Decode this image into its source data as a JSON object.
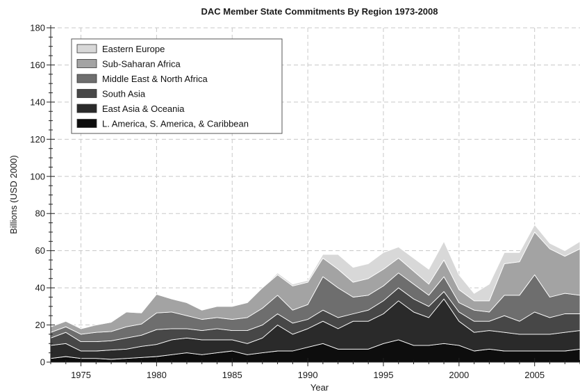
{
  "chart_data": {
    "type": "area",
    "stacked": true,
    "title": "DAC Member State Commitments By Region 1973-2008",
    "xlabel": "Year",
    "ylabel": "Billions (USD 2000)",
    "xlim": [
      1973,
      2008
    ],
    "ylim": [
      0,
      180
    ],
    "x_ticks": [
      1975,
      1980,
      1985,
      1990,
      1995,
      2000,
      2005
    ],
    "y_ticks": [
      0,
      20,
      40,
      60,
      80,
      100,
      120,
      140,
      160,
      180
    ],
    "grid": true,
    "legend_position": "top-left",
    "x": [
      1973,
      1974,
      1975,
      1976,
      1977,
      1978,
      1979,
      1980,
      1981,
      1982,
      1983,
      1984,
      1985,
      1986,
      1987,
      1988,
      1989,
      1990,
      1991,
      1992,
      1993,
      1994,
      1995,
      1996,
      1997,
      1998,
      1999,
      2000,
      2001,
      2002,
      2003,
      2004,
      2005,
      2006,
      2007,
      2008
    ],
    "series": [
      {
        "name": "L. America, S. America, & Caribbean",
        "color": "#0d0d0d",
        "values": [
          2,
          3,
          2,
          2,
          1.5,
          2,
          2.5,
          3,
          4,
          5,
          4,
          5,
          6,
          4,
          5,
          6,
          6,
          8,
          10,
          7,
          7,
          7,
          10,
          12,
          9,
          9,
          10,
          9,
          6,
          7,
          6,
          6,
          6,
          6,
          6,
          7
        ]
      },
      {
        "name": "East Asia & Oceania",
        "color": "#2a2a2a",
        "values": [
          7,
          7,
          4,
          4,
          5,
          5,
          6,
          6.5,
          8,
          8,
          8,
          7,
          6,
          6,
          8,
          14,
          9,
          10,
          12,
          11,
          15,
          15,
          16,
          21,
          18,
          15,
          24,
          13,
          10,
          10,
          10,
          9,
          9,
          9,
          10,
          10
        ]
      },
      {
        "name": "South Asia",
        "color": "#474747",
        "values": [
          4,
          6,
          5,
          5,
          5,
          6,
          6,
          8,
          6,
          5,
          5,
          6,
          5,
          7,
          7,
          6,
          6,
          5,
          6,
          6,
          4,
          6,
          7,
          7,
          7,
          6,
          4,
          5,
          6,
          5,
          9,
          7,
          12,
          9,
          10,
          9
        ]
      },
      {
        "name": "Middle East & North Africa",
        "color": "#6e6e6e",
        "values": [
          3,
          3,
          4,
          5,
          5,
          6,
          6,
          9,
          9,
          7,
          6,
          6,
          6,
          7,
          9,
          10,
          7,
          8,
          18,
          16,
          9,
          8,
          8,
          8,
          8,
          6,
          8,
          5,
          6,
          5,
          11,
          14,
          20,
          11,
          11,
          10
        ]
      },
      {
        "name": "Sub-Saharan Africa",
        "color": "#a3a3a3",
        "values": [
          3,
          3,
          3,
          4,
          5,
          8,
          6,
          10,
          7,
          7,
          5,
          6,
          7,
          8,
          11,
          11,
          13,
          12,
          10,
          10,
          8,
          9,
          9,
          8,
          7,
          6,
          9,
          7,
          5,
          6,
          17,
          18,
          23,
          26,
          20,
          25
        ]
      },
      {
        "name": "Eastern Europe",
        "color": "#d8d8d8",
        "values": [
          0,
          0,
          0,
          0,
          0,
          0,
          0,
          0,
          0,
          0,
          0,
          0,
          0,
          0,
          0,
          1,
          1,
          1,
          2,
          8,
          8,
          8,
          9,
          6,
          7,
          8,
          10,
          8,
          4,
          9,
          6,
          5,
          4,
          3,
          3,
          4
        ]
      }
    ]
  }
}
